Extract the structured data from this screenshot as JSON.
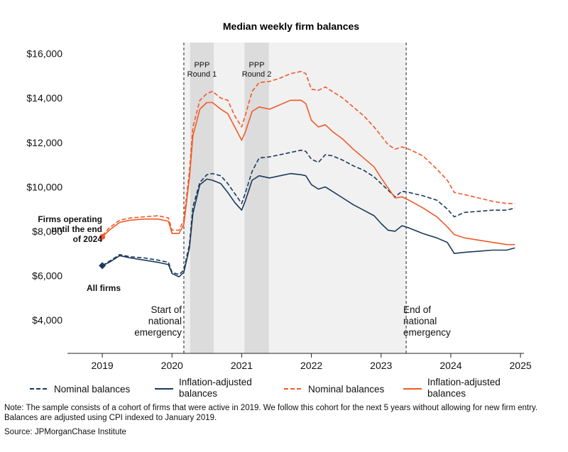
{
  "chart_data": {
    "type": "line",
    "title": "Median weekly firm balances",
    "xlabel": "",
    "ylabel": "",
    "xlim": [
      2018.5,
      2025.05
    ],
    "ylim": [
      2500,
      16500
    ],
    "x_ticks": [
      "2019",
      "2020",
      "2021",
      "2022",
      "2023",
      "2024",
      "2025"
    ],
    "y_ticks": [
      "$4,000",
      "$6,000",
      "$8,000",
      "$10,000",
      "$12,000",
      "$14,000",
      "$16,000"
    ],
    "y_tick_values": [
      4000,
      6000,
      8000,
      10000,
      12000,
      14000,
      16000
    ],
    "shaded_periods": [
      {
        "name": "national-emergency",
        "start": 2020.17,
        "end": 2023.36
      },
      {
        "name": "ppp-round-1",
        "label_line1": "PPP",
        "label_line2": "Round 1",
        "start": 2020.26,
        "end": 2020.6
      },
      {
        "name": "ppp-round-2",
        "label_line1": "PPP",
        "label_line2": "Round 2",
        "start": 2021.04,
        "end": 2021.39
      }
    ],
    "annotations": {
      "start_line1": "Start of",
      "start_line2": "national",
      "start_line3": "emergency",
      "end_line1": "End of",
      "end_line2": "national",
      "end_line3": "emergency",
      "firms_line1": "Firms operating",
      "firms_line2": "until the end",
      "firms_line3": "of 2024",
      "all_firms": "All firms"
    },
    "series": [
      {
        "name": "All firms - Nominal balances",
        "color": "#1b3a5c",
        "dash": true,
        "x": [
          2019.0,
          2019.1,
          2019.25,
          2019.4,
          2019.6,
          2019.8,
          2019.95,
          2020.0,
          2020.1,
          2020.17,
          2020.25,
          2020.3,
          2020.4,
          2020.5,
          2020.58,
          2020.7,
          2020.8,
          2020.9,
          2021.0,
          2021.05,
          2021.15,
          2021.25,
          2021.4,
          2021.55,
          2021.7,
          2021.85,
          2021.92,
          2022.0,
          2022.1,
          2022.2,
          2022.3,
          2022.45,
          2022.6,
          2022.75,
          2022.9,
          2023.0,
          2023.1,
          2023.2,
          2023.3,
          2023.4,
          2023.6,
          2023.8,
          2023.95,
          2024.05,
          2024.2,
          2024.4,
          2024.6,
          2024.8,
          2024.92
        ],
        "values": [
          6450,
          6650,
          6950,
          6850,
          6800,
          6700,
          6600,
          6150,
          6050,
          6250,
          7400,
          9100,
          10200,
          10550,
          10600,
          10500,
          10150,
          9700,
          9250,
          9700,
          10700,
          11300,
          11350,
          11450,
          11550,
          11650,
          11600,
          11250,
          11100,
          11450,
          11400,
          11200,
          10950,
          10750,
          10450,
          10150,
          9850,
          9550,
          9800,
          9750,
          9600,
          9400,
          9000,
          8650,
          8850,
          8900,
          8950,
          8950,
          9050
        ]
      },
      {
        "name": "All firms - Inflation-adjusted balances",
        "color": "#1b3a5c",
        "dash": false,
        "x": [
          2019.0,
          2019.1,
          2019.25,
          2019.4,
          2019.6,
          2019.8,
          2019.95,
          2020.0,
          2020.1,
          2020.17,
          2020.25,
          2020.3,
          2020.4,
          2020.5,
          2020.58,
          2020.7,
          2020.8,
          2020.9,
          2021.0,
          2021.05,
          2021.15,
          2021.25,
          2021.4,
          2021.55,
          2021.7,
          2021.85,
          2021.92,
          2022.0,
          2022.1,
          2022.2,
          2022.3,
          2022.45,
          2022.6,
          2022.75,
          2022.9,
          2023.0,
          2023.1,
          2023.2,
          2023.3,
          2023.4,
          2023.6,
          2023.8,
          2023.95,
          2024.05,
          2024.2,
          2024.4,
          2024.6,
          2024.8,
          2024.92
        ],
        "values": [
          6450,
          6600,
          6900,
          6800,
          6700,
          6600,
          6500,
          6100,
          5950,
          6150,
          7250,
          8800,
          10100,
          10350,
          10300,
          10150,
          9750,
          9300,
          8950,
          9350,
          10300,
          10500,
          10400,
          10500,
          10600,
          10550,
          10500,
          10100,
          9900,
          10000,
          9800,
          9500,
          9200,
          8950,
          8700,
          8350,
          8050,
          8000,
          8250,
          8150,
          7900,
          7700,
          7500,
          7000,
          7050,
          7100,
          7150,
          7150,
          7250
        ]
      },
      {
        "name": "Firms operating until the end of 2024 - Nominal balances",
        "color": "#f05a28",
        "dash": true,
        "x": [
          2019.0,
          2019.1,
          2019.25,
          2019.4,
          2019.6,
          2019.8,
          2019.95,
          2020.0,
          2020.1,
          2020.17,
          2020.25,
          2020.3,
          2020.4,
          2020.5,
          2020.58,
          2020.7,
          2020.8,
          2020.9,
          2021.0,
          2021.05,
          2021.15,
          2021.25,
          2021.4,
          2021.55,
          2021.7,
          2021.85,
          2021.92,
          2022.0,
          2022.1,
          2022.2,
          2022.3,
          2022.45,
          2022.6,
          2022.75,
          2022.9,
          2023.0,
          2023.1,
          2023.2,
          2023.3,
          2023.4,
          2023.6,
          2023.8,
          2023.95,
          2024.05,
          2024.2,
          2024.4,
          2024.6,
          2024.8,
          2024.92
        ],
        "values": [
          7800,
          8150,
          8500,
          8600,
          8650,
          8700,
          8600,
          8050,
          8050,
          8500,
          10700,
          12700,
          13900,
          14200,
          14300,
          14000,
          13900,
          13200,
          12700,
          13200,
          14300,
          14700,
          14750,
          14900,
          15100,
          15200,
          15100,
          14400,
          14350,
          14500,
          14300,
          14000,
          13600,
          13200,
          12700,
          12300,
          11900,
          11700,
          11800,
          11700,
          11400,
          10800,
          10300,
          9750,
          9650,
          9500,
          9350,
          9250,
          9250
        ]
      },
      {
        "name": "Firms operating until the end of 2024 - Inflation-adjusted balances",
        "color": "#f05a28",
        "dash": false,
        "x": [
          2019.0,
          2019.1,
          2019.25,
          2019.4,
          2019.6,
          2019.8,
          2019.95,
          2020.0,
          2020.1,
          2020.17,
          2020.25,
          2020.3,
          2020.4,
          2020.5,
          2020.58,
          2020.7,
          2020.8,
          2020.9,
          2021.0,
          2021.05,
          2021.15,
          2021.25,
          2021.4,
          2021.55,
          2021.7,
          2021.85,
          2021.92,
          2022.0,
          2022.1,
          2022.2,
          2022.3,
          2022.45,
          2022.6,
          2022.75,
          2022.9,
          2023.0,
          2023.1,
          2023.2,
          2023.3,
          2023.4,
          2023.6,
          2023.8,
          2023.95,
          2024.05,
          2024.2,
          2024.4,
          2024.6,
          2024.8,
          2024.92
        ],
        "values": [
          7750,
          8050,
          8400,
          8500,
          8550,
          8550,
          8450,
          7900,
          7900,
          8300,
          10400,
          12300,
          13500,
          13800,
          13800,
          13500,
          13300,
          12700,
          12100,
          12450,
          13400,
          13600,
          13500,
          13700,
          13900,
          13900,
          13750,
          13000,
          12700,
          12800,
          12500,
          12150,
          11700,
          11300,
          10900,
          10400,
          9950,
          9500,
          9550,
          9400,
          9050,
          8650,
          8200,
          7850,
          7700,
          7600,
          7500,
          7400,
          7400
        ]
      }
    ],
    "legend": [
      {
        "label_line1": "Nominal balances",
        "label_line2": "",
        "color": "#1b3a5c",
        "dash": true
      },
      {
        "label_line1": "Inflation-adjusted",
        "label_line2": "balances",
        "color": "#1b3a5c",
        "dash": false
      },
      {
        "label_line1": "Nominal balances",
        "label_line2": "",
        "color": "#f05a28",
        "dash": true
      },
      {
        "label_line1": "Inflation-adjusted",
        "label_line2": "balances",
        "color": "#f05a28",
        "dash": false
      }
    ]
  },
  "note": "Note: The sample consists of a cohort of firms that were active in 2019. We follow this cohort for the next 5 years without allowing for new firm entry. Balances are adjusted using CPI indexed to January 2019.",
  "source": "Source: JPMorganChase Institute"
}
